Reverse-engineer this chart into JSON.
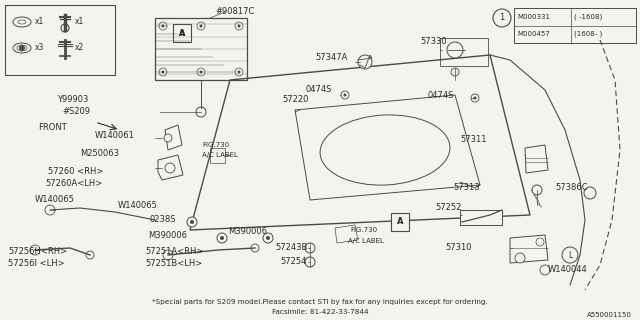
{
  "bg_color": "#f5f3ef",
  "line_color": "#4a4a4a",
  "text_color": "#2a2a2a",
  "footer_line1": "*Special parts for S209 model.Please contact STI by fax for any inquiries except for ordering.",
  "footer_line2": "Facsimile: 81-422-33-7844",
  "diagram_id": "A550001150",
  "fig_w": 6.4,
  "fig_h": 3.2,
  "dpi": 100
}
